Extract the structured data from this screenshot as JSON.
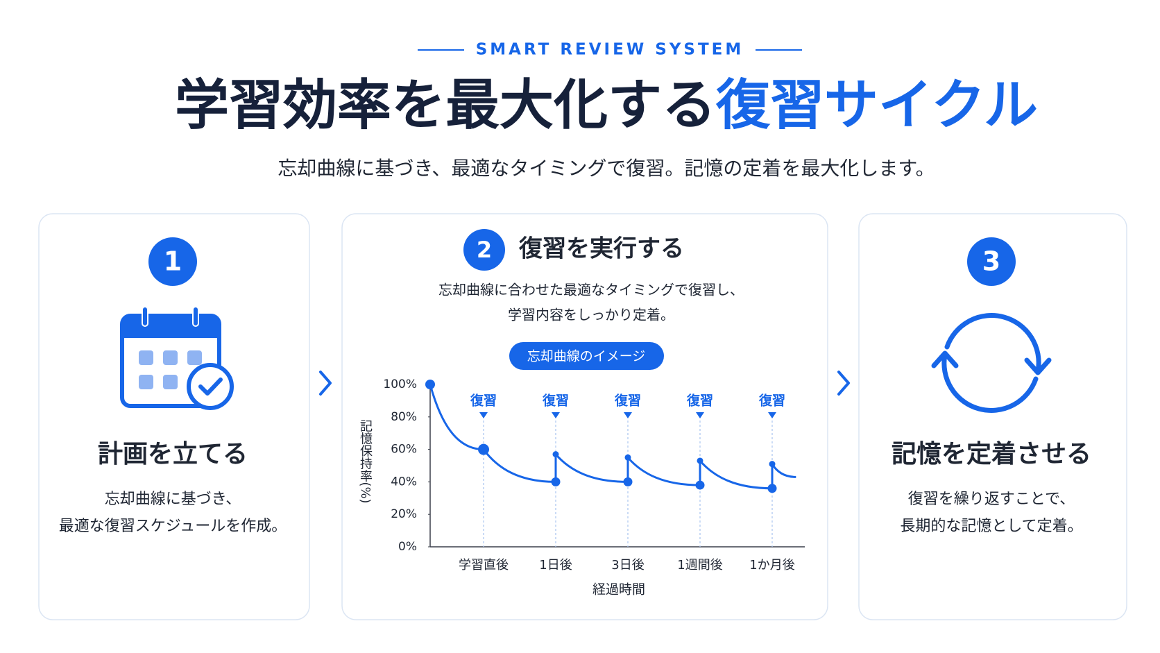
{
  "header": {
    "eyebrow": "SMART REVIEW SYSTEM",
    "title": "学習効率を最大化する",
    "title_highlight": "復習サイクル",
    "subtitle": "忘却曲線に基づき、最適なタイミングで復習。記憶の定着を最大化します。"
  },
  "steps": [
    {
      "number": "1",
      "title": "計画を立てる",
      "lines": [
        "忘却曲線に基づき、",
        "最適な復習スケジュールを作成。"
      ]
    },
    {
      "number": "2",
      "title": "復習を実行する",
      "lines": [
        "忘却曲線に合わせた最適なタイミングで復習し、",
        "学習内容をしっかり定着。"
      ],
      "badge": "忘却曲線のイメージ"
    },
    {
      "number": "3",
      "title": "記憶を定着させる",
      "lines": [
        "復習を繰り返すことで、",
        "長期的な記憶として定着。"
      ]
    }
  ],
  "chart_data": {
    "type": "line",
    "x_label": "経過時間",
    "y_label": "記憶保持率(%)",
    "categories": [
      "学習直後",
      "1日後",
      "3日後",
      "1週間後",
      "1か月後"
    ],
    "review_labels": [
      "復習",
      "復習",
      "復習",
      "復習",
      "復習"
    ],
    "start_value": 100,
    "values": [
      60,
      40,
      40,
      38,
      36
    ],
    "review_values": [
      60,
      57,
      55,
      53,
      51
    ],
    "end_value": 43,
    "color": "#1766e8",
    "ylim": [
      0,
      100
    ],
    "yticks": [
      {
        "value": 0,
        "label": "0%"
      },
      {
        "value": 20,
        "label": "20%"
      },
      {
        "value": 40,
        "label": "40%"
      },
      {
        "value": 60,
        "label": "60%"
      },
      {
        "value": 80,
        "label": "80%"
      },
      {
        "value": 100,
        "label": "100%"
      }
    ]
  }
}
